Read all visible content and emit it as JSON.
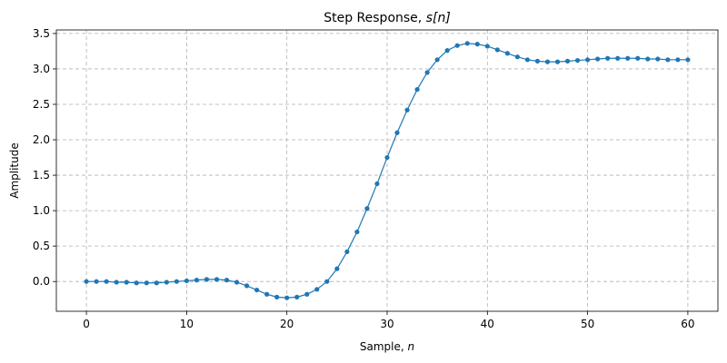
{
  "chart_data": {
    "type": "line",
    "title": "Step Response, ",
    "title_math": "s[n]",
    "xlabel": "Sample, ",
    "xlabel_math": "n",
    "ylabel": "Amplitude",
    "xlim": [
      -3,
      63
    ],
    "ylim": [
      -0.42,
      3.55
    ],
    "xticks": [
      0,
      10,
      20,
      30,
      40,
      50,
      60
    ],
    "yticks": [
      0.0,
      0.5,
      1.0,
      1.5,
      2.0,
      2.5,
      3.0,
      3.5
    ],
    "grid": true,
    "marker": "circle",
    "color": "#1f77b4",
    "series": [
      {
        "x": [
          0,
          1,
          2,
          3,
          4,
          5,
          6,
          7,
          8,
          9,
          10,
          11,
          12,
          13,
          14,
          15,
          16,
          17,
          18,
          19,
          20,
          21,
          22,
          23,
          24,
          25,
          26,
          27,
          28,
          29,
          30,
          31,
          32,
          33,
          34,
          35,
          36,
          37,
          38,
          39,
          40,
          41,
          42,
          43,
          44,
          45,
          46,
          47,
          48,
          49,
          50,
          51,
          52,
          53,
          54,
          55,
          56,
          57,
          58,
          59,
          60
        ],
        "values": [
          0.0,
          0.0,
          0.0,
          -0.01,
          -0.01,
          -0.02,
          -0.02,
          -0.02,
          -0.01,
          0.0,
          0.01,
          0.02,
          0.03,
          0.03,
          0.02,
          -0.01,
          -0.06,
          -0.12,
          -0.18,
          -0.22,
          -0.23,
          -0.22,
          -0.18,
          -0.11,
          0.0,
          0.18,
          0.42,
          0.7,
          1.03,
          1.38,
          1.75,
          2.1,
          2.42,
          2.71,
          2.95,
          3.13,
          3.26,
          3.33,
          3.36,
          3.35,
          3.32,
          3.27,
          3.22,
          3.17,
          3.13,
          3.11,
          3.1,
          3.1,
          3.11,
          3.12,
          3.13,
          3.14,
          3.15,
          3.15,
          3.15,
          3.15,
          3.14,
          3.14,
          3.13,
          3.13,
          3.13
        ]
      }
    ]
  }
}
